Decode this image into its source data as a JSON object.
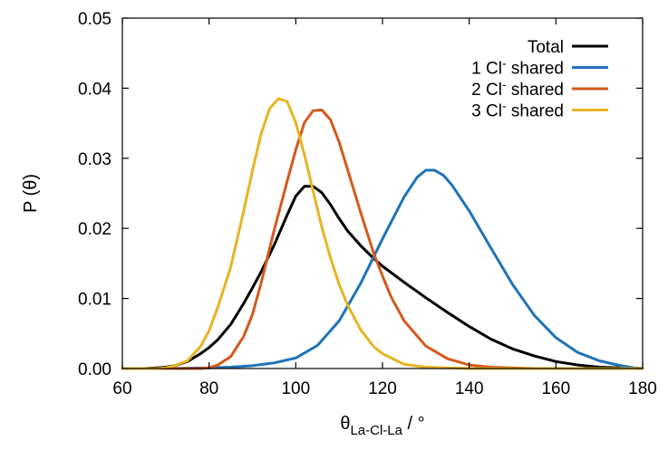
{
  "chart_data": {
    "type": "line",
    "title": "",
    "xlabel": "θ",
    "xlabel_sub": "La-Cl-La",
    "xlabel_suffix": " / °",
    "ylabel": "P (θ)",
    "xlim": [
      60,
      180
    ],
    "ylim": [
      0,
      0.05
    ],
    "xticks": [
      60,
      80,
      100,
      120,
      140,
      160,
      180
    ],
    "yticks": [
      0.0,
      0.01,
      0.02,
      0.03,
      0.04,
      0.05
    ],
    "xtick_labels": [
      "60",
      "80",
      "100",
      "120",
      "140",
      "160",
      "180"
    ],
    "ytick_labels": [
      "0.00",
      "0.01",
      "0.02",
      "0.03",
      "0.04",
      "0.05"
    ],
    "grid": false,
    "legend_position": "top-right",
    "series": [
      {
        "name": "Total",
        "color": "#000000",
        "x": [
          60,
          65,
          68,
          70,
          72,
          75,
          78,
          80,
          82,
          85,
          88,
          90,
          92,
          95,
          98,
          100,
          102,
          104,
          106,
          108,
          110,
          112,
          115,
          118,
          120,
          125,
          130,
          135,
          140,
          145,
          150,
          155,
          160,
          165,
          170,
          175,
          178,
          180
        ],
        "y": [
          0,
          0,
          0.0001,
          0.0002,
          0.0004,
          0.001,
          0.0021,
          0.003,
          0.0041,
          0.0063,
          0.0093,
          0.0115,
          0.0138,
          0.0176,
          0.0219,
          0.0246,
          0.026,
          0.026,
          0.0251,
          0.0234,
          0.0214,
          0.0196,
          0.0175,
          0.0157,
          0.0146,
          0.0123,
          0.0101,
          0.008,
          0.006,
          0.0042,
          0.0028,
          0.0018,
          0.001,
          0.0005,
          0.0002,
          0.0001,
          0,
          0
        ]
      },
      {
        "name": "1 Cl⁻ shared",
        "label_parts": [
          "1 Cl",
          "-",
          " shared"
        ],
        "color": "#1f73b8",
        "x": [
          60,
          70,
          80,
          85,
          90,
          95,
          100,
          105,
          110,
          115,
          120,
          125,
          128,
          130,
          132,
          134,
          136,
          140,
          145,
          150,
          155,
          160,
          165,
          170,
          175,
          178,
          180
        ],
        "y": [
          0,
          0,
          0.0001,
          0.0002,
          0.0004,
          0.0008,
          0.0015,
          0.0033,
          0.0068,
          0.0122,
          0.0185,
          0.0245,
          0.0273,
          0.0283,
          0.0283,
          0.0276,
          0.0262,
          0.0225,
          0.0172,
          0.012,
          0.0076,
          0.0044,
          0.0023,
          0.0011,
          0.0004,
          0.0001,
          0
        ]
      },
      {
        "name": "2 Cl⁻ shared",
        "label_parts": [
          "2 Cl",
          "-",
          " shared"
        ],
        "color": "#d45a1e",
        "x": [
          60,
          70,
          75,
          78,
          80,
          82,
          85,
          88,
          90,
          92,
          95,
          98,
          100,
          102,
          104,
          106,
          108,
          110,
          112,
          115,
          118,
          120,
          122,
          125,
          130,
          135,
          140,
          145,
          150,
          155,
          160,
          180
        ],
        "y": [
          0,
          0,
          0,
          0,
          0.0001,
          0.0005,
          0.0017,
          0.0046,
          0.0077,
          0.0122,
          0.0197,
          0.0267,
          0.0312,
          0.0351,
          0.0368,
          0.0369,
          0.0355,
          0.0323,
          0.0283,
          0.0222,
          0.0164,
          0.0132,
          0.0102,
          0.0068,
          0.0032,
          0.0014,
          0.0005,
          0.0002,
          0.0001,
          0,
          0,
          0
        ]
      },
      {
        "name": "3 Cl⁻ shared",
        "label_parts": [
          "3 Cl",
          "-",
          " shared"
        ],
        "color": "#e8b423",
        "x": [
          60,
          65,
          68,
          70,
          72,
          75,
          78,
          80,
          82,
          85,
          88,
          90,
          92,
          94,
          96,
          98,
          100,
          102,
          104,
          106,
          108,
          110,
          112,
          115,
          118,
          120,
          125,
          130,
          135,
          140,
          145,
          150,
          180
        ],
        "y": [
          0,
          0,
          0,
          0.0001,
          0.0004,
          0.0011,
          0.0031,
          0.0054,
          0.0087,
          0.0145,
          0.0225,
          0.0282,
          0.0335,
          0.0371,
          0.0385,
          0.0381,
          0.0351,
          0.0305,
          0.0253,
          0.0202,
          0.0158,
          0.012,
          0.009,
          0.0055,
          0.0031,
          0.0021,
          0.0006,
          0.0002,
          0.0001,
          0,
          0,
          0,
          0
        ]
      }
    ]
  }
}
